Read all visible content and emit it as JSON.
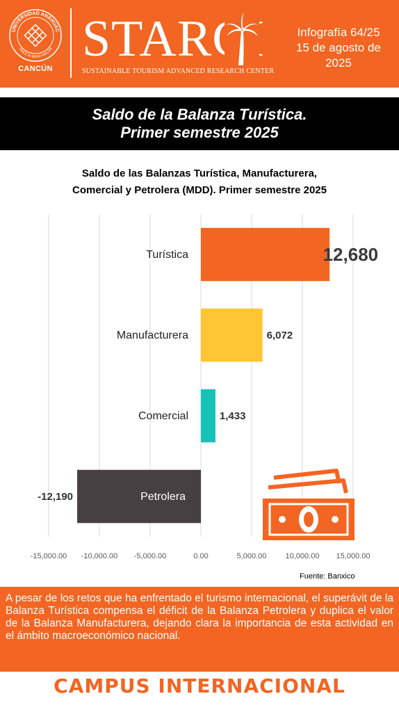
{
  "header": {
    "logo_arc_top": "UNIVERSIDAD ANÁHUAC",
    "logo_arc_bottom": "VINCE IN BONO MALUM",
    "campus": "CANCÚN",
    "brand": "STARCI",
    "brand_subtitle": "SUSTAINABLE TOURISM ADVANCED RESEARCH CENTER",
    "infographic": "Infografía 64/25",
    "date_line1": "15 de agosto de",
    "date_line2": "2025"
  },
  "banner": {
    "line1": "Saldo de la Balanza Turística.",
    "line2": "Primer semestre 2025"
  },
  "chart_data": {
    "type": "bar",
    "orientation": "horizontal",
    "title_line1": "Saldo de las Balanzas Turística, Manufacturera,",
    "title_line2": "Comercial y Petrolera (MDD). Primer semestre 2025",
    "categories": [
      "Turística",
      "Manufacturera",
      "Comercial",
      "Petrolera"
    ],
    "values": [
      12680,
      6072,
      1433,
      -12190
    ],
    "value_labels": [
      "12,680",
      "6,072",
      "1,433",
      "-12,190"
    ],
    "colors": [
      "#f26522",
      "#ffc634",
      "#16c3b8",
      "#474042"
    ],
    "xlim": [
      -15000,
      15000
    ],
    "xticks": [
      -15000,
      -10000,
      -5000,
      0,
      5000,
      10000,
      15000
    ],
    "xtick_labels": [
      "-15,000.00",
      "-10,000.00",
      "-5,000.00",
      "0.00",
      "5,000.00",
      "10,000.00",
      "15,000.00"
    ],
    "grid": true
  },
  "decor": {
    "icon": "money-bills-icon",
    "accent": "#f26522"
  },
  "source": "Fuente: Banxico",
  "note": "A pesar de los retos que ha enfrentado el turismo internacional, el superávit de la Balanza Turística compensa el déficit de la Balanza Petrolera y duplica el valor de la Balanza Manufacturera, dejando clara la importancia de esta actividad en el ámbito macroeconómico nacional.",
  "footer": "CAMPUS INTERNACIONAL"
}
